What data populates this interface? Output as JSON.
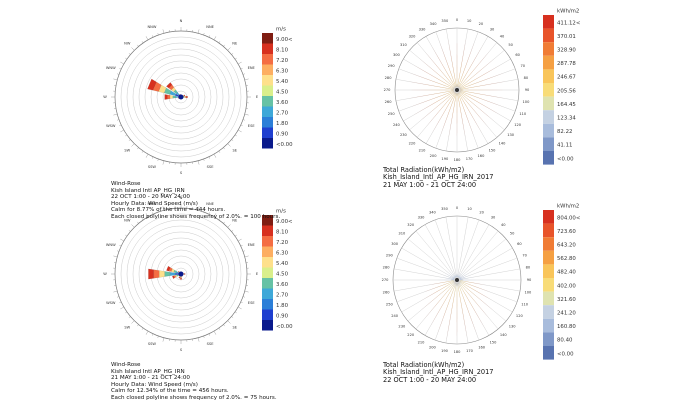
{
  "chart_data": [
    {
      "type": "wind-rose",
      "title": "Wind-Rose",
      "location": "Kish Island Intl AP_HG_IRN",
      "period": "22 OCT 1:00 - 20 MAY 24:00",
      "data_type": "Hourly Data: Wind Speed (m/s)",
      "calm": "Calm for 8.77% of the time = 444 hours.",
      "polyline": "Each closed polyline shows frequency of 2.0%. = 100 hours.",
      "legend_unit": "m/s",
      "legend_labels": [
        "9.00<",
        "8.10",
        "7.20",
        "6.30",
        "5.40",
        "4.50",
        "3.60",
        "2.70",
        "1.80",
        "0.90",
        "<0.00"
      ],
      "directions": [
        "N",
        "NNE",
        "NE",
        "ENE",
        "E",
        "ESE",
        "SE",
        "SSE",
        "S",
        "SSW",
        "SW",
        "WSW",
        "W",
        "WNW",
        "NW",
        "NNW"
      ],
      "frequencies_pct": [
        0.5,
        0.6,
        0.6,
        1.4,
        2.2,
        0.6,
        0.4,
        0.4,
        0.5,
        0.4,
        0.4,
        1.0,
        5.5,
        11.5,
        6.0,
        1.0
      ]
    },
    {
      "type": "wind-rose",
      "title": "Wind-Rose",
      "location": "Kish Island Intl AP_HG_IRN",
      "period": "21 MAY 1:00 - 21 OCT 24:00",
      "data_type": "Hourly Data: Wind Speed (m/s)",
      "calm": "Calm for 12.34% of the time = 456 hours.",
      "polyline": "Each closed polyline shows frequency of 2.0%. = 75 hours.",
      "legend_unit": "m/s",
      "legend_labels": [
        "9.00<",
        "8.10",
        "7.20",
        "6.30",
        "5.40",
        "4.50",
        "3.60",
        "2.70",
        "1.80",
        "0.90",
        "<0.00"
      ],
      "directions": [
        "N",
        "NNE",
        "NE",
        "ENE",
        "E",
        "ESE",
        "SE",
        "SSE",
        "S",
        "SSW",
        "SW",
        "WSW",
        "W",
        "WNW",
        "NW",
        "NNW"
      ],
      "frequencies_pct": [
        0.4,
        0.4,
        0.4,
        0.8,
        1.4,
        0.6,
        0.5,
        0.9,
        1.8,
        1.5,
        0.9,
        3.0,
        11.0,
        5.0,
        1.2,
        0.5
      ]
    },
    {
      "type": "radiation-rose",
      "title": "Total Radiation(kWh/m2)",
      "location": "Kish_Island_Intl_AP_HG_IRN_2017",
      "period": "21 MAY 1:00 - 21 OCT 24:00",
      "legend_unit": "kWh/m2",
      "legend_labels": [
        "411.12<",
        "370.01",
        "328.90",
        "287.78",
        "246.67",
        "205.56",
        "164.45",
        "123.34",
        "82.22",
        "41.11",
        "<0.00"
      ],
      "spoke_count": 36,
      "max_value": 411.12
    },
    {
      "type": "radiation-rose",
      "title": "Total Radiation(kWh/m2)",
      "location": "Kish_Island_Intl_AP_HG_IRN_2017",
      "period": "22 OCT 1:00 - 20 MAY 24:00",
      "legend_unit": "kWh/m2",
      "legend_labels": [
        "804.00<",
        "723.60",
        "643.20",
        "562.80",
        "482.40",
        "402.00",
        "321.60",
        "241.20",
        "160.80",
        "80.40",
        "<0.00"
      ],
      "spoke_count": 36,
      "max_value": 804.0
    }
  ],
  "colors": {
    "wind_scale": [
      "#7f1d12",
      "#d7301f",
      "#f46d43",
      "#fdae61",
      "#fee08b",
      "#d9ef8b",
      "#66c2a5",
      "#3ea8d8",
      "#2c7fd8",
      "#1f3fcf",
      "#0a1a8c"
    ],
    "rad_scale": [
      "#d7301f",
      "#e8542a",
      "#f07c35",
      "#f5a043",
      "#f9c55a",
      "#f8dc78",
      "#dfe3b0",
      "#c4d1e2",
      "#a8bcdc",
      "#7f98c8",
      "#5873b0"
    ]
  }
}
